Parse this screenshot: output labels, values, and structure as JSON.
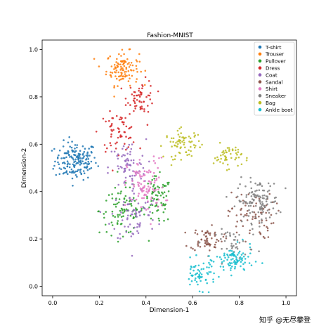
{
  "chart_data": {
    "type": "scatter",
    "title": "Fashion-MNIST",
    "xlabel": "Dimension-1",
    "ylabel": "Dimension-2",
    "xlim": [
      -0.045,
      1.045
    ],
    "ylim": [
      -0.04,
      1.04
    ],
    "x_ticks": [
      "0.0",
      "0.2",
      "0.4",
      "0.6",
      "0.8",
      "1.0"
    ],
    "y_ticks": [
      "0.0",
      "0.2",
      "0.4",
      "0.6",
      "0.8",
      "1.0"
    ],
    "legend_position": "top-right",
    "grid": false,
    "series": [
      {
        "name": "T-shirt",
        "color": "#1f77b4",
        "clusters": [
          {
            "cx": 0.1,
            "cy": 0.53,
            "sx": 0.045,
            "sy": 0.04,
            "n": 170
          }
        ]
      },
      {
        "name": "Trouser",
        "color": "#ff7f0e",
        "clusters": [
          {
            "cx": 0.3,
            "cy": 0.92,
            "sx": 0.035,
            "sy": 0.035,
            "n": 110
          }
        ]
      },
      {
        "name": "Pullover",
        "color": "#2ca02c",
        "clusters": [
          {
            "cx": 0.3,
            "cy": 0.32,
            "sx": 0.05,
            "sy": 0.05,
            "n": 90
          },
          {
            "cx": 0.45,
            "cy": 0.36,
            "sx": 0.03,
            "sy": 0.05,
            "n": 70
          }
        ]
      },
      {
        "name": "Dress",
        "color": "#d62728",
        "clusters": [
          {
            "cx": 0.38,
            "cy": 0.8,
            "sx": 0.03,
            "sy": 0.035,
            "n": 60
          },
          {
            "cx": 0.28,
            "cy": 0.65,
            "sx": 0.04,
            "sy": 0.04,
            "n": 60
          }
        ]
      },
      {
        "name": "Coat",
        "color": "#9467bd",
        "clusters": [
          {
            "cx": 0.32,
            "cy": 0.5,
            "sx": 0.04,
            "sy": 0.06,
            "n": 70
          },
          {
            "cx": 0.35,
            "cy": 0.3,
            "sx": 0.05,
            "sy": 0.06,
            "n": 70
          }
        ]
      },
      {
        "name": "Sandal",
        "color": "#8c564b",
        "clusters": [
          {
            "cx": 0.66,
            "cy": 0.2,
            "sx": 0.035,
            "sy": 0.025,
            "n": 60
          },
          {
            "cx": 0.85,
            "cy": 0.3,
            "sx": 0.05,
            "sy": 0.05,
            "n": 70
          }
        ]
      },
      {
        "name": "Shirt",
        "color": "#e377c2",
        "clusters": [
          {
            "cx": 0.4,
            "cy": 0.42,
            "sx": 0.04,
            "sy": 0.06,
            "n": 100
          }
        ]
      },
      {
        "name": "Sneaker",
        "color": "#7f7f7f",
        "clusters": [
          {
            "cx": 0.88,
            "cy": 0.36,
            "sx": 0.045,
            "sy": 0.045,
            "n": 120
          },
          {
            "cx": 0.78,
            "cy": 0.18,
            "sx": 0.04,
            "sy": 0.03,
            "n": 40
          }
        ]
      },
      {
        "name": "Bag",
        "color": "#bcbd22",
        "clusters": [
          {
            "cx": 0.56,
            "cy": 0.6,
            "sx": 0.04,
            "sy": 0.03,
            "n": 70
          },
          {
            "cx": 0.75,
            "cy": 0.55,
            "sx": 0.03,
            "sy": 0.025,
            "n": 50
          }
        ]
      },
      {
        "name": "Ankle boot",
        "color": "#17becf",
        "clusters": [
          {
            "cx": 0.63,
            "cy": 0.05,
            "sx": 0.035,
            "sy": 0.03,
            "n": 60
          },
          {
            "cx": 0.78,
            "cy": 0.11,
            "sx": 0.04,
            "sy": 0.03,
            "n": 90
          }
        ]
      }
    ]
  },
  "watermark": "知乎 @无尽攀登"
}
